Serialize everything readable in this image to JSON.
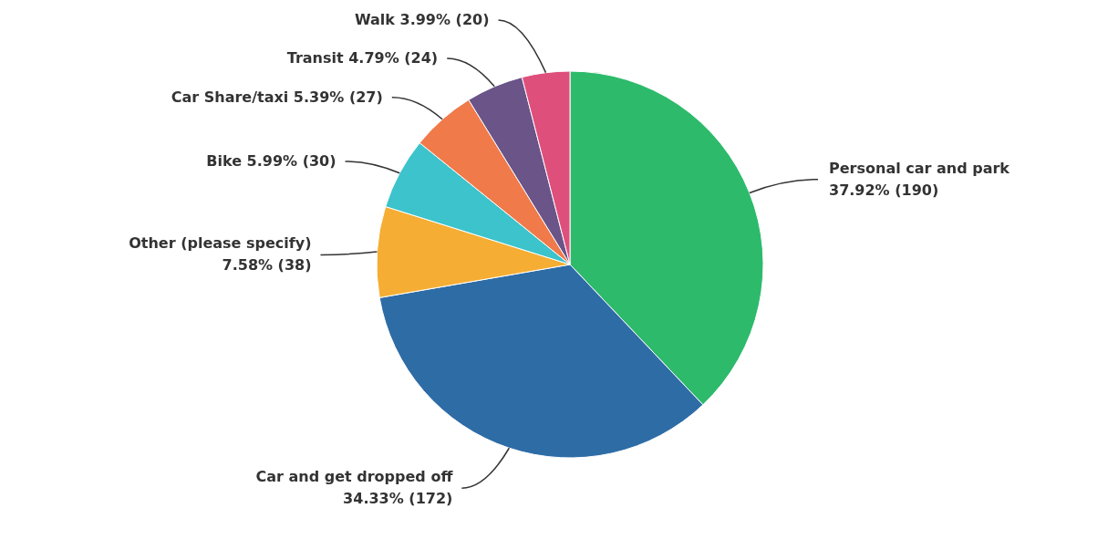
{
  "chart_data": {
    "type": "pie",
    "categories": [
      "Personal car and park",
      "Car and get dropped off",
      "Other (please specify)",
      "Bike",
      "Car Share/taxi",
      "Transit",
      "Walk"
    ],
    "values": [
      190,
      172,
      38,
      30,
      27,
      24,
      20
    ],
    "value_labels": [
      "37.92% (190)",
      "34.33% (172)",
      "7.58% (38)",
      "5.99% (30)",
      "5.39% (27)",
      "4.79% (24)",
      "3.99% (20)"
    ],
    "colors": [
      "#2dba6b",
      "#2e6ca6",
      "#f5ad33",
      "#3cc3cb",
      "#f07a4a",
      "#6a5488",
      "#de4f7c"
    ],
    "legend": false
  }
}
